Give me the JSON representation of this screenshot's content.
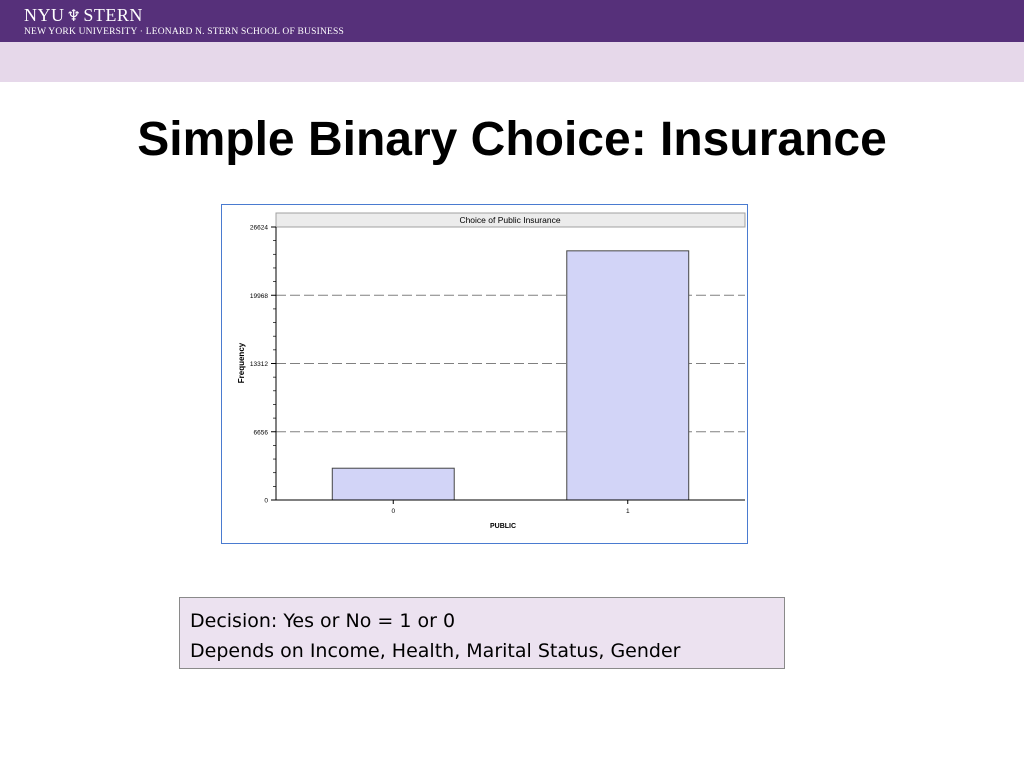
{
  "header": {
    "logo_text_left": "NYU",
    "logo_text_right": "STERN",
    "logo_subtitle": "NEW YORK UNIVERSITY · LEONARD N. STERN SCHOOL OF BUSINESS",
    "torch_icon": "torch-icon"
  },
  "slide": {
    "title": "Simple Binary Choice: Insurance"
  },
  "chart_data": {
    "type": "bar",
    "title": "Choice of Public Insurance",
    "xlabel": "PUBLIC",
    "ylabel": "Frequency",
    "categories": [
      "0",
      "1"
    ],
    "values": [
      3100,
      24300
    ],
    "yticks": [
      "0",
      "6656",
      "13312",
      "19968",
      "26624"
    ],
    "ylim": [
      0,
      26624
    ],
    "grid": true,
    "bar_color": "#d2d4f7"
  },
  "note": {
    "line1": "Decision: Yes or No = 1 or 0",
    "line2": "Depends on Income, Health, Marital Status, Gender"
  },
  "colors": {
    "header_bg": "#56307a",
    "subheader_bg": "#e6d8ea",
    "note_bg": "#ece2f0"
  }
}
